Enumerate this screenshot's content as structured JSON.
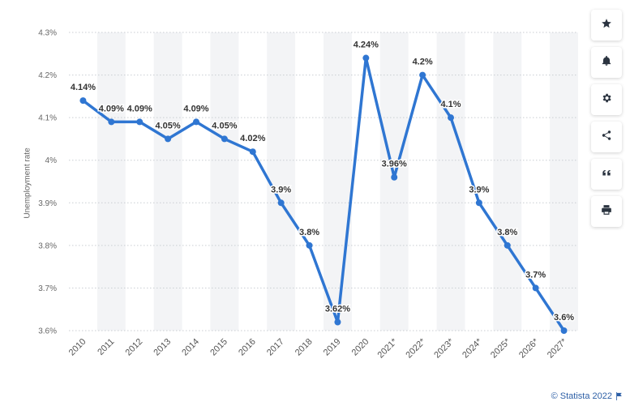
{
  "chart_data": {
    "type": "line",
    "categories": [
      "2010",
      "2011",
      "2012",
      "2013",
      "2014",
      "2015",
      "2016",
      "2017",
      "2018",
      "2019",
      "2020",
      "2021*",
      "2022*",
      "2023*",
      "2024*",
      "2025*",
      "2026*",
      "2027*"
    ],
    "values": [
      4.14,
      4.09,
      4.09,
      4.05,
      4.09,
      4.05,
      4.02,
      3.9,
      3.8,
      3.62,
      4.24,
      3.96,
      4.2,
      4.1,
      3.9,
      3.8,
      3.7,
      3.6
    ],
    "data_labels": [
      "4.14%",
      "4.09%",
      "4.09%",
      "4.05%",
      "4.09%",
      "4.05%",
      "4.02%",
      "3.9%",
      "3.8%",
      "3.62%",
      "4.24%",
      "3.96%",
      "4.2%",
      "4.1%",
      "3.9%",
      "3.8%",
      "3.7%",
      "3.6%"
    ],
    "y_ticks": [
      3.6,
      3.7,
      3.8,
      3.9,
      4.0,
      4.1,
      4.2,
      4.3
    ],
    "y_tick_labels": [
      "3.6%",
      "3.7%",
      "3.8%",
      "3.9%",
      "4%",
      "4.1%",
      "4.2%",
      "4.3%"
    ],
    "ylim": [
      3.6,
      4.3
    ],
    "ylabel": "Unemployment rate",
    "xlabel": "",
    "title": "",
    "grid": "horizontal dotted, alternating column shading",
    "line_color": "#2f76d2",
    "shade_color": "#f3f4f6"
  },
  "sidebar": {
    "buttons": [
      {
        "name": "star-icon"
      },
      {
        "name": "bell-icon"
      },
      {
        "name": "gear-icon"
      },
      {
        "name": "share-icon"
      },
      {
        "name": "quote-icon"
      },
      {
        "name": "print-icon"
      }
    ]
  },
  "footer": {
    "credit": "© Statista 2022",
    "icon": "flag-icon"
  }
}
